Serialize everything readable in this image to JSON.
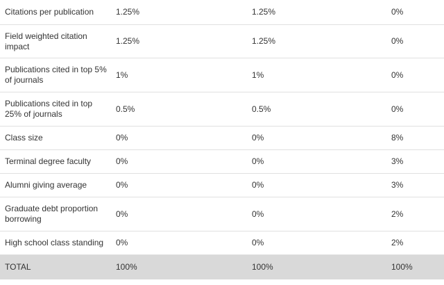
{
  "rows": [
    {
      "label": "Citations per publication",
      "v1": "1.25%",
      "v2": "1.25%",
      "v3": "0%"
    },
    {
      "label": "Field weighted citation impact",
      "v1": "1.25%",
      "v2": "1.25%",
      "v3": "0%"
    },
    {
      "label": "Publications cited in top 5% of journals",
      "v1": "1%",
      "v2": "1%",
      "v3": "0%"
    },
    {
      "label": "Publications cited in top 25% of journals",
      "v1": "0.5%",
      "v2": "0.5%",
      "v3": "0%"
    },
    {
      "label": "Class size",
      "v1": "0%",
      "v2": "0%",
      "v3": "8%"
    },
    {
      "label": "Terminal degree faculty",
      "v1": "0%",
      "v2": "0%",
      "v3": "3%"
    },
    {
      "label": "Alumni giving average",
      "v1": "0%",
      "v2": "0%",
      "v3": "3%"
    },
    {
      "label": "Graduate debt proportion borrowing",
      "v1": "0%",
      "v2": "0%",
      "v3": "2%"
    },
    {
      "label": "High school class standing",
      "v1": "0%",
      "v2": "0%",
      "v3": "2%"
    }
  ],
  "total": {
    "label": "TOTAL",
    "v1": "100%",
    "v2": "100%",
    "v3": "100%"
  },
  "colors": {
    "total_row_background": "#d9d9d9",
    "row_divider": "#e0e0e0",
    "text": "#333333"
  }
}
